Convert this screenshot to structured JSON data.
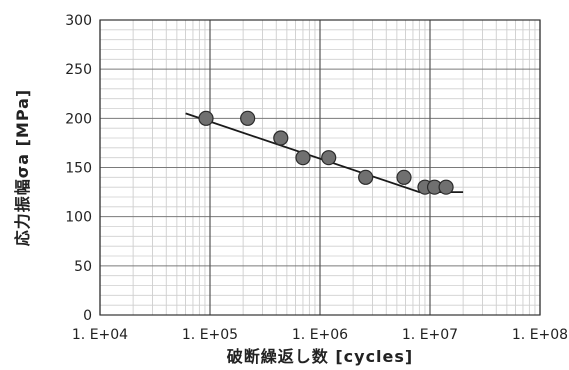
{
  "chart_data": {
    "type": "scatter",
    "title": "",
    "xlabel": "破断繰返し数 [cycles]",
    "ylabel": "応力振幅σa [MPa]",
    "xscale": "log",
    "xlim": [
      10000,
      100000000
    ],
    "ylim": [
      0,
      300
    ],
    "x_ticks": [
      10000,
      100000,
      1000000,
      10000000,
      100000000
    ],
    "x_tick_labels": [
      "1. E+04",
      "1. E+05",
      "1. E+06",
      "1. E+07",
      "1. E+08"
    ],
    "y_ticks": [
      0,
      50,
      100,
      150,
      200,
      250,
      300
    ],
    "y_tick_labels": [
      "0",
      "50",
      "100",
      "150",
      "200",
      "250",
      "300"
    ],
    "grid": true,
    "legend": "none",
    "series": [
      {
        "kind": "points",
        "marker": "circle",
        "color": "#707070",
        "points": [
          {
            "x": 92000,
            "y": 200
          },
          {
            "x": 220000,
            "y": 200
          },
          {
            "x": 440000,
            "y": 180
          },
          {
            "x": 700000,
            "y": 160
          },
          {
            "x": 1200000,
            "y": 160
          },
          {
            "x": 2600000,
            "y": 140
          },
          {
            "x": 5800000,
            "y": 140
          },
          {
            "x": 9000000,
            "y": 130
          },
          {
            "x": 11000000,
            "y": 130
          },
          {
            "x": 14000000,
            "y": 130
          }
        ]
      },
      {
        "kind": "fit-line",
        "color": "#1a1a1a",
        "points": [
          {
            "x": 60000,
            "y": 205
          },
          {
            "x": 8000000,
            "y": 125
          },
          {
            "x": 20000000,
            "y": 125
          }
        ]
      }
    ]
  }
}
